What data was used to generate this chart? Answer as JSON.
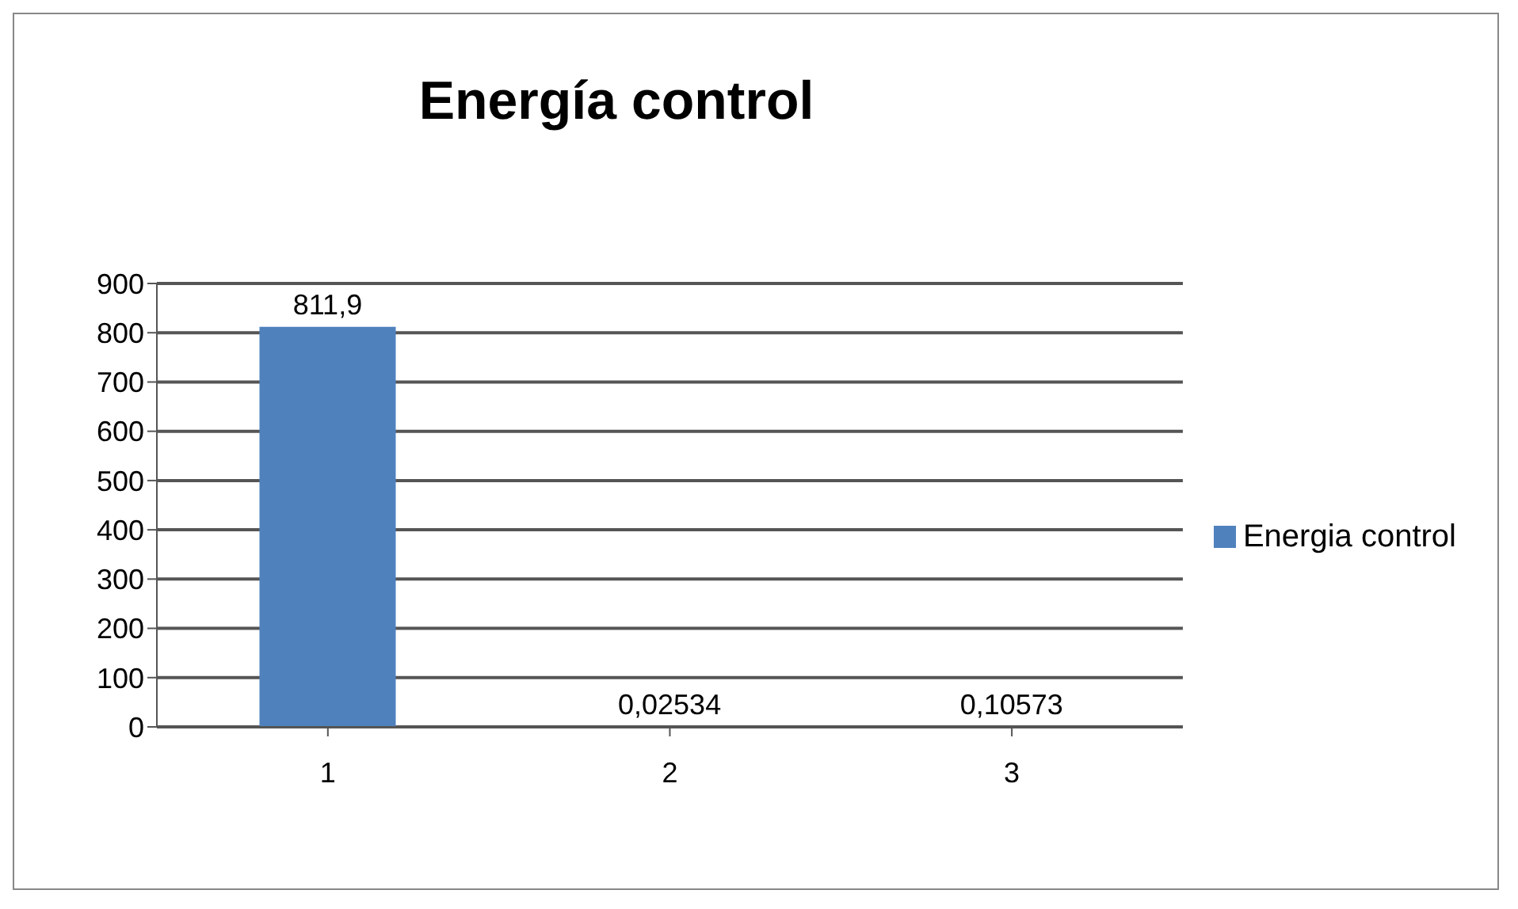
{
  "chart_data": {
    "type": "bar",
    "title": "Energía control",
    "categories": [
      "1",
      "2",
      "3"
    ],
    "series": [
      {
        "name": "Energia control",
        "color": "#4f81bd",
        "values": [
          811.9,
          0.02534,
          0.10573
        ],
        "value_labels": [
          "811,9",
          "0,02534",
          "0,10573"
        ]
      }
    ],
    "ylim": [
      0,
      900
    ],
    "yticks": [
      0,
      100,
      200,
      300,
      400,
      500,
      600,
      700,
      800,
      900
    ],
    "grid": "y",
    "legend": "right"
  }
}
